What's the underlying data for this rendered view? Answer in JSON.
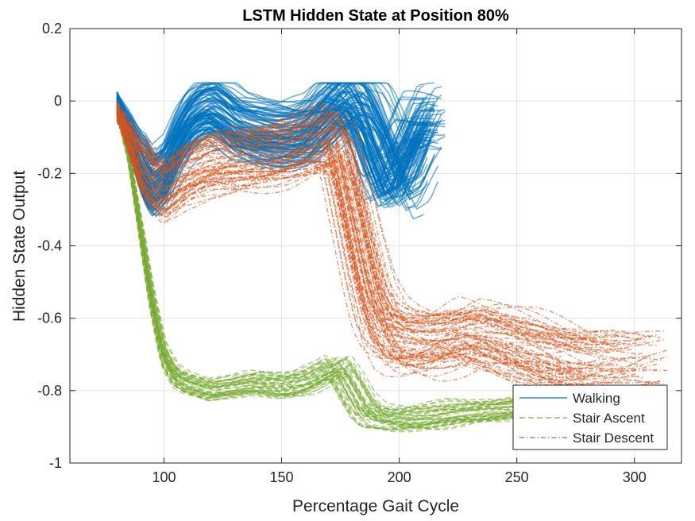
{
  "chart_data": {
    "type": "line",
    "title": "LSTM Hidden State at Position 80%",
    "xlabel": "Percentage Gait Cycle",
    "ylabel": "Hidden State Output",
    "xlim": [
      60,
      320
    ],
    "ylim": [
      -1,
      0.2
    ],
    "xticks": [
      100,
      150,
      200,
      250,
      300
    ],
    "yticks": [
      -1,
      -0.8,
      -0.6,
      -0.4,
      -0.2,
      0,
      0.2
    ],
    "xtick_labels": [
      "100",
      "150",
      "200",
      "250",
      "300"
    ],
    "ytick_labels": [
      "-1",
      "-0.8",
      "-0.6",
      "-0.4",
      "-0.2",
      "0",
      "0.2"
    ],
    "grid": true,
    "legend_position": "bottom-right",
    "series": [
      {
        "name": "Walking",
        "color": "#0072BD",
        "style": "solid",
        "count": 110,
        "representative": {
          "x": [
            80,
            85,
            90,
            95,
            100,
            105,
            110,
            115,
            120,
            125,
            130,
            140,
            150,
            160,
            165,
            170,
            175,
            180,
            185,
            190,
            195,
            200,
            205,
            210
          ],
          "y": [
            0,
            -0.08,
            -0.17,
            -0.23,
            -0.2,
            -0.12,
            -0.06,
            -0.03,
            -0.02,
            -0.04,
            -0.07,
            -0.09,
            -0.1,
            -0.09,
            -0.06,
            -0.02,
            0.01,
            0.0,
            -0.05,
            -0.14,
            -0.22,
            -0.2,
            -0.12,
            -0.05
          ]
        }
      },
      {
        "name": "Stair Ascent",
        "color": "#77AC30",
        "style": "dashed",
        "count": 45,
        "representative": {
          "x": [
            80,
            85,
            90,
            95,
            100,
            105,
            110,
            120,
            130,
            140,
            150,
            160,
            170,
            175,
            180,
            185,
            190,
            200,
            210,
            220,
            230,
            240,
            250,
            260
          ],
          "y": [
            -0.03,
            -0.15,
            -0.35,
            -0.55,
            -0.7,
            -0.76,
            -0.78,
            -0.8,
            -0.79,
            -0.78,
            -0.79,
            -0.78,
            -0.75,
            -0.73,
            -0.78,
            -0.84,
            -0.87,
            -0.88,
            -0.88,
            -0.87,
            -0.86,
            -0.86,
            -0.85,
            -0.84
          ]
        }
      },
      {
        "name": "Stair Descent",
        "color": "#D95319",
        "style": "dashdot",
        "count": 70,
        "representative": {
          "x": [
            80,
            85,
            90,
            95,
            100,
            110,
            120,
            130,
            140,
            150,
            160,
            170,
            175,
            180,
            185,
            190,
            195,
            200,
            210,
            220,
            230,
            240,
            250,
            260,
            270
          ],
          "y": [
            -0.03,
            -0.1,
            -0.18,
            -0.22,
            -0.25,
            -0.2,
            -0.17,
            -0.16,
            -0.15,
            -0.14,
            -0.12,
            -0.1,
            -0.15,
            -0.3,
            -0.45,
            -0.58,
            -0.64,
            -0.66,
            -0.67,
            -0.66,
            -0.64,
            -0.66,
            -0.68,
            -0.7,
            -0.72
          ]
        }
      }
    ]
  }
}
